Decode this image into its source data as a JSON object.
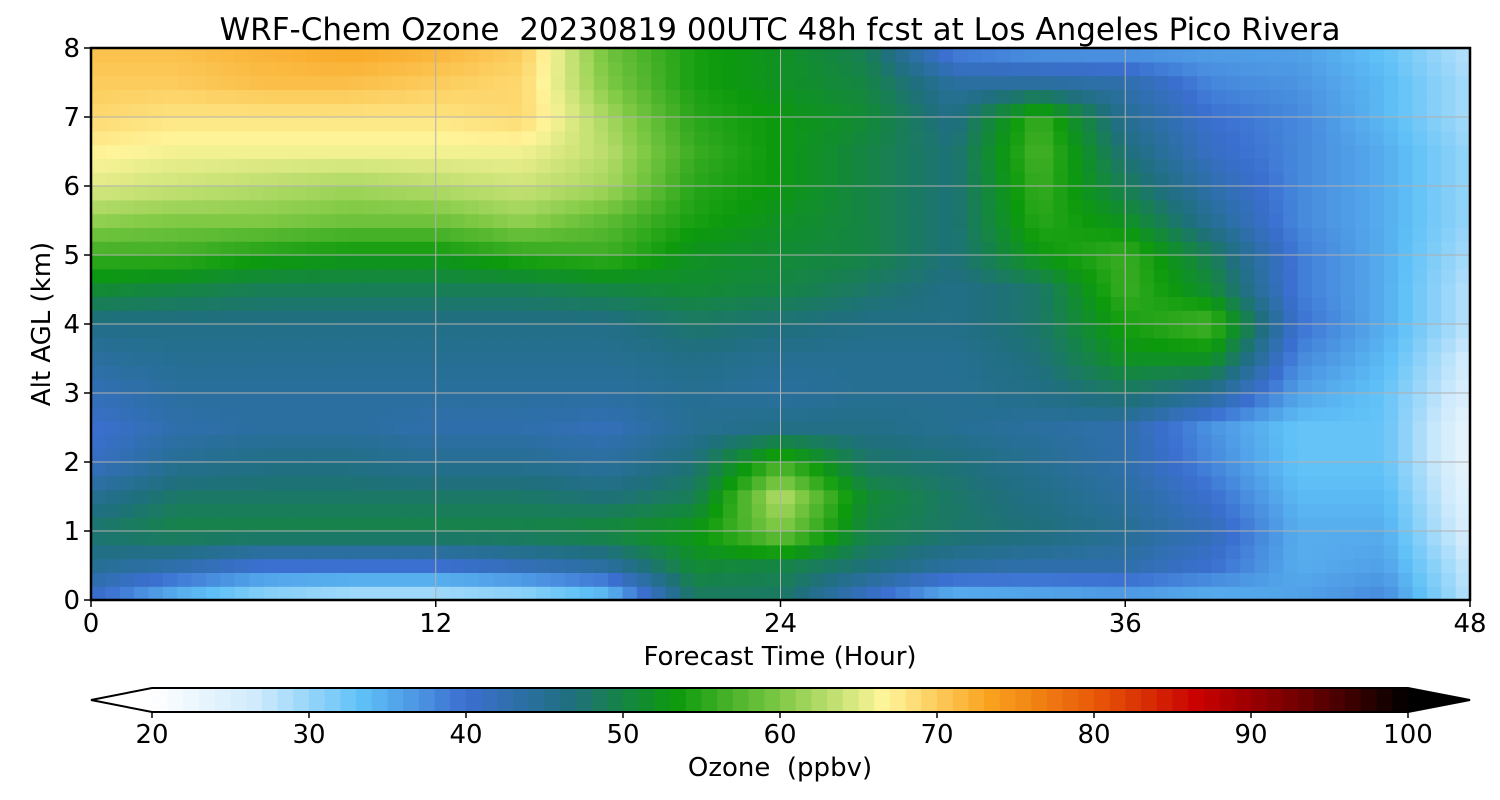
{
  "chart_data": {
    "type": "heatmap",
    "title": "WRF-Chem Ozone  20230819 00UTC 48h fcst at Los Angeles Pico Rivera",
    "xlabel": "Forecast Time (Hour)",
    "ylabel": "Alt AGL (km)",
    "xlim": [
      0,
      48
    ],
    "ylim": [
      0,
      8
    ],
    "xticks": [
      0,
      12,
      24,
      36,
      48
    ],
    "yticks": [
      0,
      1,
      2,
      3,
      4,
      5,
      6,
      7,
      8
    ],
    "grid": true,
    "colorbar": {
      "label": "Ozone  (ppbv)",
      "ticks": [
        20,
        30,
        40,
        50,
        60,
        70,
        80,
        90,
        100
      ],
      "range": [
        20,
        100
      ],
      "extend": "both",
      "colors": [
        "#ffffff",
        "#cfeafc",
        "#5fc1f7",
        "#3b6fd0",
        "#1f6f7e",
        "#0c9a0c",
        "#7fc944",
        "#fff59b",
        "#f9a21d",
        "#e85a09",
        "#c80000",
        "#6e0000",
        "#000000"
      ]
    },
    "x": [
      0,
      3,
      6,
      9,
      12,
      15,
      18,
      21,
      24,
      27,
      30,
      33,
      36,
      39,
      42,
      45,
      48
    ],
    "y": [
      0,
      0.5,
      1,
      1.5,
      2,
      2.5,
      3,
      3.5,
      4,
      4.5,
      5,
      5.5,
      6,
      6.5,
      7,
      7.5,
      8
    ],
    "z": [
      [
        40,
        33,
        29,
        27,
        27,
        28,
        32,
        48,
        48,
        40,
        33,
        34,
        35,
        34,
        36,
        38,
        28
      ],
      [
        45,
        43,
        40,
        40,
        40,
        42,
        44,
        51,
        50,
        47,
        44,
        43,
        43,
        40,
        35,
        36,
        27
      ],
      [
        48,
        50,
        50,
        50,
        50,
        50,
        51,
        53,
        60,
        50,
        48,
        47,
        45,
        42,
        35,
        35,
        25
      ],
      [
        45,
        48,
        48,
        48,
        48,
        48,
        47,
        49,
        63,
        51,
        48,
        46,
        44,
        40,
        34,
        34,
        24
      ],
      [
        41,
        45,
        46,
        46,
        45,
        45,
        44,
        47,
        56,
        48,
        47,
        45,
        43,
        38,
        33,
        33,
        23
      ],
      [
        40,
        43,
        44,
        44,
        43,
        43,
        42,
        45,
        46,
        46,
        45,
        44,
        43,
        37,
        33,
        33,
        23
      ],
      [
        42,
        44,
        44,
        44,
        44,
        44,
        44,
        45,
        44,
        45,
        45,
        46,
        48,
        45,
        36,
        33,
        25
      ],
      [
        44,
        45,
        45,
        45,
        45,
        45,
        45,
        46,
        45,
        45,
        45,
        47,
        52,
        52,
        38,
        34,
        26
      ],
      [
        46,
        46,
        46,
        46,
        46,
        46,
        46,
        48,
        47,
        46,
        46,
        48,
        54,
        57,
        40,
        35,
        28
      ],
      [
        51,
        50,
        49,
        49,
        49,
        49,
        50,
        51,
        50,
        48,
        46,
        48,
        56,
        51,
        39,
        35,
        28
      ],
      [
        56,
        56,
        54,
        53,
        53,
        55,
        56,
        52,
        51,
        50,
        47,
        53,
        56,
        49,
        39,
        35,
        29
      ],
      [
        61,
        60,
        60,
        59,
        59,
        61,
        58,
        54,
        52,
        50,
        47,
        55,
        52,
        45,
        38,
        35,
        30
      ],
      [
        65,
        64,
        63,
        62,
        63,
        64,
        62,
        55,
        53,
        50,
        47,
        56,
        49,
        43,
        38,
        35,
        30
      ],
      [
        67,
        66,
        66,
        66,
        66,
        66,
        63,
        56,
        53,
        50,
        47,
        57,
        47,
        41,
        38,
        35,
        30
      ],
      [
        69,
        68,
        68,
        68,
        68,
        69,
        62,
        55,
        53,
        51,
        46,
        56,
        45,
        40,
        38,
        34,
        29
      ],
      [
        70,
        70,
        71,
        71,
        70,
        69,
        60,
        54,
        52,
        50,
        44,
        44,
        43,
        38,
        37,
        34,
        29
      ],
      [
        71,
        71,
        72,
        73,
        72,
        70,
        59,
        54,
        52,
        49,
        38,
        36,
        36,
        36,
        36,
        33,
        28
      ]
    ]
  }
}
